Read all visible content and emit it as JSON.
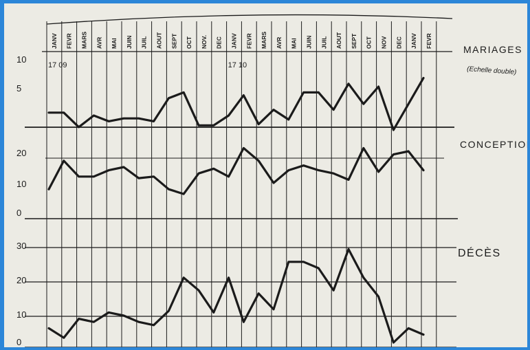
{
  "chart_data": {
    "type": "line",
    "x": [
      "JANV",
      "FEVR",
      "MARS",
      "AVR",
      "MAI",
      "JUIN",
      "JUIL",
      "AOUT",
      "SEPT",
      "OCT",
      "NOV.",
      "DEC",
      "JANV",
      "FEVR",
      "MARS",
      "AVR",
      "MAI",
      "JUIN",
      "JUIL",
      "AOUT",
      "SEPT",
      "OCT",
      "NOV",
      "DEC",
      "JANV",
      "FEVR"
    ],
    "years": [
      {
        "label": "17 09",
        "index": 0
      },
      {
        "label": "17 10",
        "index": 12
      }
    ],
    "panels": [
      {
        "label": "MARIAGES",
        "note": "(Echelle double)",
        "ylim": [
          0,
          12
        ],
        "ticks": [
          "10",
          "5"
        ],
        "tick_values": [
          10,
          5
        ],
        "values": [
          3,
          3,
          0.5,
          2.5,
          1.5,
          2,
          2,
          1.5,
          5.5,
          6.5,
          0.8,
          0.8,
          2.5,
          6,
          1,
          3.5,
          1.8,
          6.5,
          6.5,
          3.5,
          8,
          4.5,
          7.5,
          0,
          4.5,
          9
        ]
      },
      {
        "label": "CONCEPTION",
        "ylim": [
          0,
          26
        ],
        "ticks": [
          "20",
          "10",
          "0"
        ],
        "tick_values": [
          20,
          10,
          0
        ],
        "values": [
          8,
          17,
          12,
          12,
          14,
          15,
          11.5,
          12,
          8,
          6.5,
          13,
          14.5,
          12,
          21,
          17,
          10,
          14,
          15.5,
          14,
          13,
          11,
          21,
          13.5,
          19,
          20,
          14
        ]
      },
      {
        "label": "DÉCÈS",
        "ylim": [
          0,
          36
        ],
        "ticks": [
          "30",
          "20",
          "10",
          "0"
        ],
        "tick_values": [
          30,
          20,
          10,
          0
        ],
        "values": [
          6,
          3,
          9,
          8,
          11,
          10,
          8,
          7,
          11.5,
          22,
          18,
          11,
          22,
          8,
          17,
          12,
          27,
          27,
          25,
          18,
          31,
          22,
          16,
          1.5,
          6,
          4
        ]
      }
    ],
    "grid": true
  }
}
